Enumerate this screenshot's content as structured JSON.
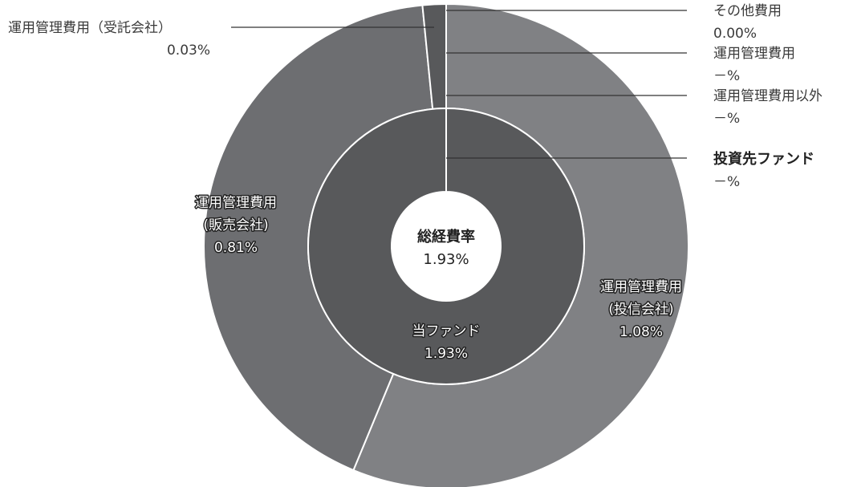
{
  "chart_data": {
    "type": "pie",
    "variant": "nested-donut",
    "center": {
      "title": "総経費率",
      "value": "1.93%"
    },
    "inner_ring": [
      {
        "name": "当ファンド",
        "value": 1.93,
        "value_label": "1.93%",
        "color": "#58595b"
      },
      {
        "name": "投資先ファンド",
        "value": 0,
        "value_label": "－%",
        "color": "#3a3a3a"
      }
    ],
    "outer_ring": [
      {
        "name": "運用管理費用(投信会社)",
        "name_lines": [
          "運用管理費用",
          "(投信会社)"
        ],
        "value": 1.08,
        "value_label": "1.08%",
        "color": "#808184"
      },
      {
        "name": "運用管理費用(販売会社)",
        "name_lines": [
          "運用管理費用",
          "(販売会社)"
        ],
        "value": 0.81,
        "value_label": "0.81%",
        "color": "#6d6e71"
      },
      {
        "name": "運用管理費用（受託会社）",
        "value": 0.03,
        "value_label": "0.03%",
        "color": "#58595b"
      },
      {
        "name": "運用管理費用以外",
        "value": 0,
        "value_label": "－%",
        "color": "#6d6e71"
      },
      {
        "name": "運用管理費用",
        "value": 0,
        "value_label": "－%",
        "color": "#6d6e71"
      },
      {
        "name": "その他費用",
        "value": 0.0,
        "value_label": "0.00%",
        "color": "#6d6e71"
      }
    ],
    "outside_labels": {
      "trustee": {
        "name": "運用管理費用（受託会社）",
        "value": "0.03%"
      },
      "other": {
        "name": "その他費用",
        "value": "0.00%"
      },
      "mgmt": {
        "name": "運用管理費用",
        "value": "－%"
      },
      "non_mgmt": {
        "name": "運用管理費用以外",
        "value": "－%"
      },
      "invested_fund": {
        "name": "投資先ファンド",
        "value": "－%"
      }
    }
  }
}
